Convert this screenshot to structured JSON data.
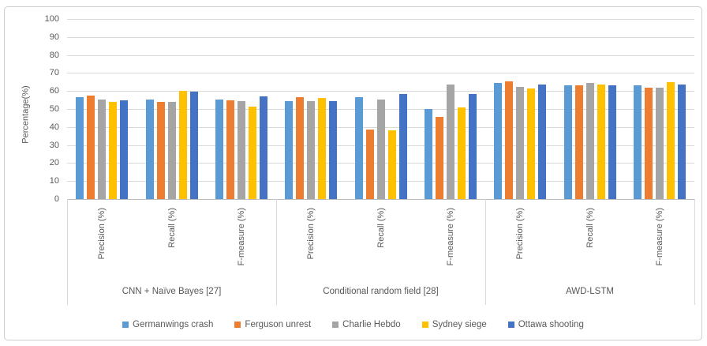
{
  "figure": {
    "border_color": "#cfcdcd",
    "background": "#ffffff"
  },
  "chart_data": {
    "type": "bar",
    "title": "",
    "xlabel": "",
    "ylabel": "Percentage(%)",
    "ylim": [
      0,
      100
    ],
    "ytick_step": 10,
    "grid": true,
    "legend_position": "bottom",
    "group_labels": [
      "CNN + Naïve Bayes [27]",
      "Conditional random field [28]",
      "AWD-LSTM"
    ],
    "categories_per_group": [
      "Precision (%)",
      "Recall (%)",
      "F-measure (%)"
    ],
    "series": [
      {
        "name": "Germanwings crash",
        "color": "#5b9bd5",
        "values": [
          56.5,
          55.5,
          55.5,
          54.5,
          56.5,
          50,
          64.5,
          63,
          63
        ]
      },
      {
        "name": "Ferguson unrest",
        "color": "#ed7d31",
        "values": [
          57.5,
          54,
          55,
          56.5,
          38.5,
          45.5,
          65.5,
          63,
          62
        ]
      },
      {
        "name": "Charlie Hebdo",
        "color": "#a5a5a5",
        "values": [
          55.5,
          54,
          54.5,
          54.5,
          55.5,
          63.5,
          62.5,
          64.5,
          62
        ]
      },
      {
        "name": "Sydney siege",
        "color": "#ffc000",
        "values": [
          54,
          60,
          51.5,
          56,
          38,
          51,
          61.5,
          63.5,
          65
        ]
      },
      {
        "name": "Ottawa shooting",
        "color": "#4472c4",
        "values": [
          55,
          59.5,
          57,
          54.5,
          58.5,
          58.5,
          63.5,
          63,
          63.5
        ]
      }
    ]
  }
}
